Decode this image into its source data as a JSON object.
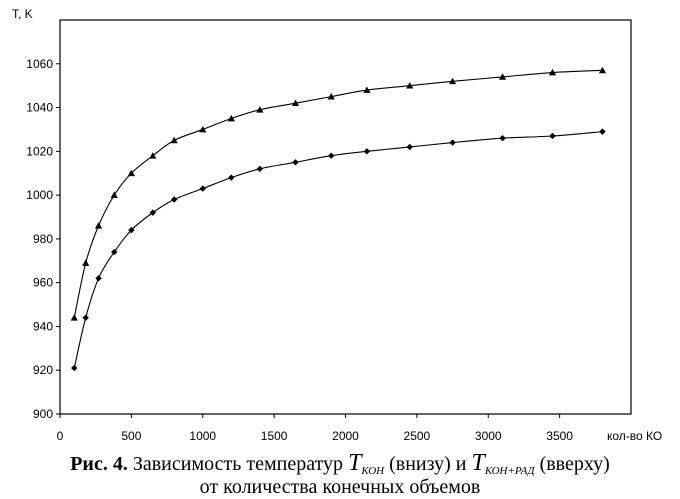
{
  "chart_data": {
    "type": "line",
    "ylabel": "T, K",
    "xlabel": "кол-во КО",
    "xlim": [
      0,
      4000
    ],
    "ylim": [
      900,
      1080
    ],
    "x_ticks": [
      "0",
      "500",
      "1000",
      "1500",
      "2000",
      "2500",
      "3000",
      "3500"
    ],
    "y_ticks": [
      "900",
      "920",
      "940",
      "960",
      "980",
      "1000",
      "1020",
      "1040",
      "1060"
    ],
    "grid": false,
    "series": [
      {
        "marker": "triangle",
        "x": [
          100,
          180,
          270,
          380,
          500,
          650,
          800,
          1000,
          1200,
          1400,
          1650,
          1900,
          2150,
          2450,
          2750,
          3100,
          3450,
          3800
        ],
        "y": [
          944,
          969,
          986,
          1000,
          1010,
          1018,
          1025,
          1030,
          1035,
          1039,
          1042,
          1045,
          1048,
          1050,
          1052,
          1054,
          1056,
          1057
        ]
      },
      {
        "marker": "diamond",
        "x": [
          100,
          180,
          270,
          380,
          500,
          650,
          800,
          1000,
          1200,
          1400,
          1650,
          1900,
          2150,
          2450,
          2750,
          3100,
          3450,
          3800
        ],
        "y": [
          921,
          944,
          962,
          974,
          984,
          992,
          998,
          1003,
          1008,
          1012,
          1015,
          1018,
          1020,
          1022,
          1024,
          1026,
          1027,
          1029
        ]
      }
    ]
  },
  "caption": {
    "fig_label": "Рис. 4.",
    "text_before": " Зависимость температур ",
    "symbol1": "T",
    "symbol1_sub": "КОН",
    "text_middle": " (внизу) и ",
    "symbol2": "T",
    "symbol2_sub": "КОН+РАД",
    "text_after": " (вверху)",
    "line2": "от количества конечных объемов"
  }
}
